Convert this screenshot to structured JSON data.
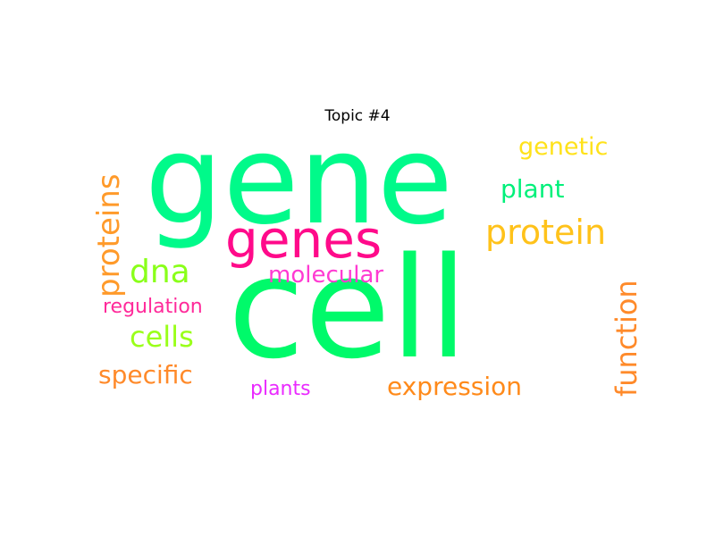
{
  "title": "Topic #4",
  "words": [
    {
      "id": "gene",
      "text": "gene",
      "color": "#00fa8a"
    },
    {
      "id": "cell",
      "text": "cell",
      "color": "#00fa6a"
    },
    {
      "id": "genes",
      "text": "genes",
      "color": "#ff0a8a"
    },
    {
      "id": "protein",
      "text": "protein",
      "color": "#ffc21a"
    },
    {
      "id": "proteins",
      "text": "proteins",
      "color": "#ff9a2a"
    },
    {
      "id": "genetic",
      "text": "genetic",
      "color": "#ffe21a"
    },
    {
      "id": "plant",
      "text": "plant",
      "color": "#00f07a"
    },
    {
      "id": "dna",
      "text": "dna",
      "color": "#8aff1a"
    },
    {
      "id": "molecular",
      "text": "molecular",
      "color": "#ff3ad2"
    },
    {
      "id": "regulation",
      "text": "regulation",
      "color": "#ff2a9a"
    },
    {
      "id": "cells",
      "text": "cells",
      "color": "#9aff1a"
    },
    {
      "id": "function",
      "text": "function",
      "color": "#ff8a2a"
    },
    {
      "id": "specific",
      "text": "specific",
      "color": "#ff8a2a"
    },
    {
      "id": "expression",
      "text": "expression",
      "color": "#ff8a1a"
    },
    {
      "id": "plants",
      "text": "plants",
      "color": "#ea2aff"
    }
  ]
}
